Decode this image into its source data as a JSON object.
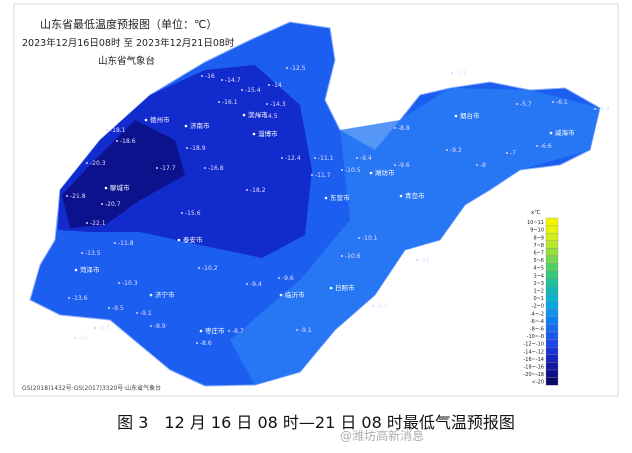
{
  "header": {
    "title": "山东省最低温度预报图（单位：℃）",
    "period": "2023年12月16日08时 至 2023年12月21日08时",
    "agency": "山东省气象台"
  },
  "source": "GS(2018)1432号·GS(2017)3320号·山东省气象台",
  "caption": "图 3　12 月 16 日 08 时—21 日 08 时最低气温预报图",
  "watermark": "@潍坊高新消息",
  "legend": {
    "unit": "x℃",
    "items": [
      {
        "label": "10~11",
        "color": "#f5f500"
      },
      {
        "label": "9~10",
        "color": "#e8f20a"
      },
      {
        "label": "8~9",
        "color": "#d2ee1a"
      },
      {
        "label": "7~8",
        "color": "#b6e82a"
      },
      {
        "label": "6~7",
        "color": "#96e03c"
      },
      {
        "label": "5~6",
        "color": "#74d84e"
      },
      {
        "label": "4~5",
        "color": "#52d064"
      },
      {
        "label": "3~4",
        "color": "#34c87c"
      },
      {
        "label": "2~3",
        "color": "#1ec096"
      },
      {
        "label": "1~2",
        "color": "#10bab2"
      },
      {
        "label": "0~1",
        "color": "#0ab4cc"
      },
      {
        "label": "-2~0",
        "color": "#0aa6e0"
      },
      {
        "label": "-4~-2",
        "color": "#0c92ea"
      },
      {
        "label": "-6~-4",
        "color": "#107ef0"
      },
      {
        "label": "-8~-6",
        "color": "#166af2"
      },
      {
        "label": "-10~-8",
        "color": "#1a56f0"
      },
      {
        "label": "-12~-10",
        "color": "#1c44e8"
      },
      {
        "label": "-14~-12",
        "color": "#1a32d8"
      },
      {
        "label": "-16~-14",
        "color": "#1624c0"
      },
      {
        "label": "-18~-16",
        "color": "#1218a4"
      },
      {
        "label": "-20~-18",
        "color": "#0e1088"
      },
      {
        "label": "<-20",
        "color": "#0a0a6a"
      }
    ]
  },
  "cities": [
    "济南市",
    "淄博市",
    "潍坊市",
    "烟台市",
    "威海市",
    "青岛市",
    "日照市",
    "临沂市",
    "枣庄市",
    "济宁市",
    "泰安市",
    "聊城市",
    "德州市",
    "滨州市",
    "东营市",
    "菏泽市"
  ],
  "stations": [
    "-12.5",
    "-14.7",
    "-16",
    "-15.4",
    "-16.1",
    "-14",
    "-14.3",
    "-14.5",
    "-18.6",
    "-18.1",
    "-18.9",
    "-17.7",
    "-16.8",
    "-20.3",
    "-21.8",
    "-20.7",
    "-22.1",
    "-15.6",
    "-18.2",
    "-12.4",
    "-11.1",
    "-11.7",
    "-9.4",
    "-10.5",
    "-11",
    "-9.6",
    "-9.3",
    "-8",
    "-7",
    "-5.7",
    "-6.1",
    "-4.4",
    "-5.2",
    "-6.6",
    "-8.8",
    "-10.1",
    "-10.2",
    "-11.8",
    "-13.6",
    "-13.5",
    "-10.3",
    "-9.7",
    "-9.5",
    "-9.1",
    "-8.9",
    "-9.4",
    "-9.6",
    "-10.6",
    "-9.1",
    "-8.6",
    "-8.7",
    "-9.2",
    "-10"
  ]
}
